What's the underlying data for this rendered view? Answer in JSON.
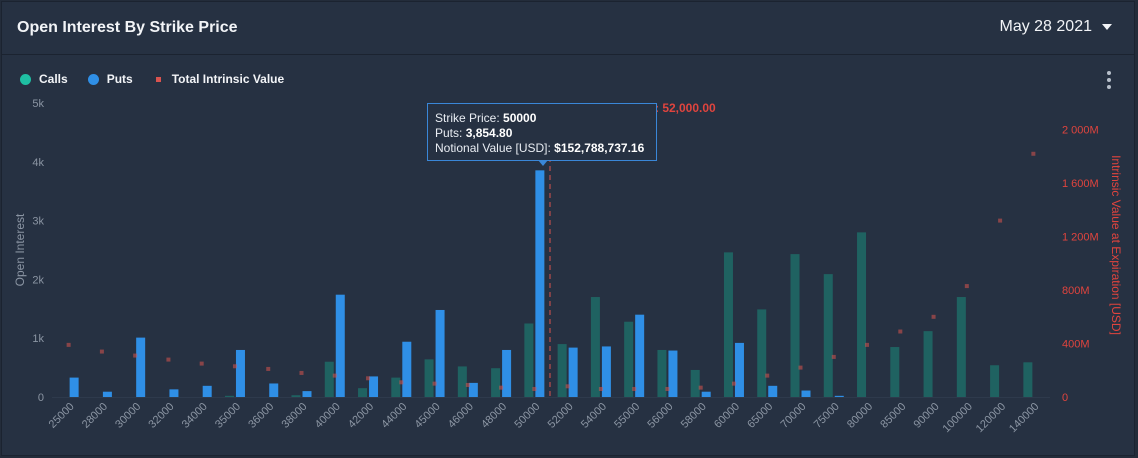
{
  "header": {
    "title": "Open Interest By Strike Price",
    "date": "May 28 2021"
  },
  "legend": {
    "calls": "Calls",
    "puts": "Puts",
    "intrinsic": "Total Intrinsic Value"
  },
  "colors": {
    "calls": "#1f6b66",
    "puts": "#2f8fe6",
    "intrinsic": "#d9534f",
    "price_line": "#d9534f"
  },
  "icons": {
    "menu": "kebab-menu-icon",
    "dropdown": "chevron-down-icon"
  },
  "tooltip": {
    "strike_label": "Strike Price: ",
    "strike_value": "50000",
    "puts_label": "Puts: ",
    "puts_value": "3,854.80",
    "notional_label": "Notional Value [USD]: ",
    "notional_value": "$152,788,737.16"
  },
  "price_marker": {
    "label_visible": ": 52,000.00",
    "value": 52000
  },
  "chart_data": {
    "type": "bar",
    "title": "Open Interest By Strike Price",
    "ylabel": "Open Interest",
    "y2label": "Intrinsic Value at Expiration [USD]",
    "ylim": [
      0,
      5000
    ],
    "y2lim": [
      0,
      2200000000
    ],
    "yticks": [
      "0",
      "1k",
      "2k",
      "3k",
      "4k",
      "5k"
    ],
    "y2ticks": [
      "0",
      "400M",
      "800M",
      "1 200M",
      "1 600M",
      "2 000M"
    ],
    "grid": false,
    "legend_position": "top-left",
    "categories": [
      "25000",
      "28000",
      "30000",
      "32000",
      "34000",
      "35000",
      "36000",
      "38000",
      "40000",
      "42000",
      "44000",
      "45000",
      "46000",
      "48000",
      "50000",
      "52000",
      "54000",
      "55000",
      "56000",
      "58000",
      "60000",
      "65000",
      "70000",
      "75000",
      "80000",
      "85000",
      "90000",
      "100000",
      "120000",
      "140000"
    ],
    "series": [
      {
        "name": "Calls",
        "values": [
          0,
          0,
          0,
          0,
          0,
          20,
          0,
          30,
          600,
          150,
          330,
          640,
          520,
          490,
          1250,
          900,
          1700,
          1280,
          800,
          460,
          2460,
          1490,
          2430,
          2090,
          2800,
          850,
          1120,
          1700,
          540,
          590
        ]
      },
      {
        "name": "Puts",
        "values": [
          330,
          90,
          1010,
          130,
          190,
          800,
          230,
          100,
          1740,
          350,
          940,
          1480,
          240,
          800,
          3854.8,
          840,
          860,
          1400,
          790,
          90,
          920,
          190,
          110,
          20,
          0,
          0,
          0,
          0,
          0,
          0
        ]
      },
      {
        "name": "Total Intrinsic Value",
        "values": [
          390000000,
          340000000,
          310000000,
          280000000,
          250000000,
          230000000,
          210000000,
          180000000,
          160000000,
          140000000,
          110000000,
          100000000,
          90000000,
          70000000,
          60000000,
          80000000,
          60000000,
          60000000,
          60000000,
          70000000,
          100000000,
          160000000,
          220000000,
          300000000,
          390000000,
          490000000,
          600000000,
          830000000,
          1320000000,
          1820000000
        ]
      }
    ]
  }
}
